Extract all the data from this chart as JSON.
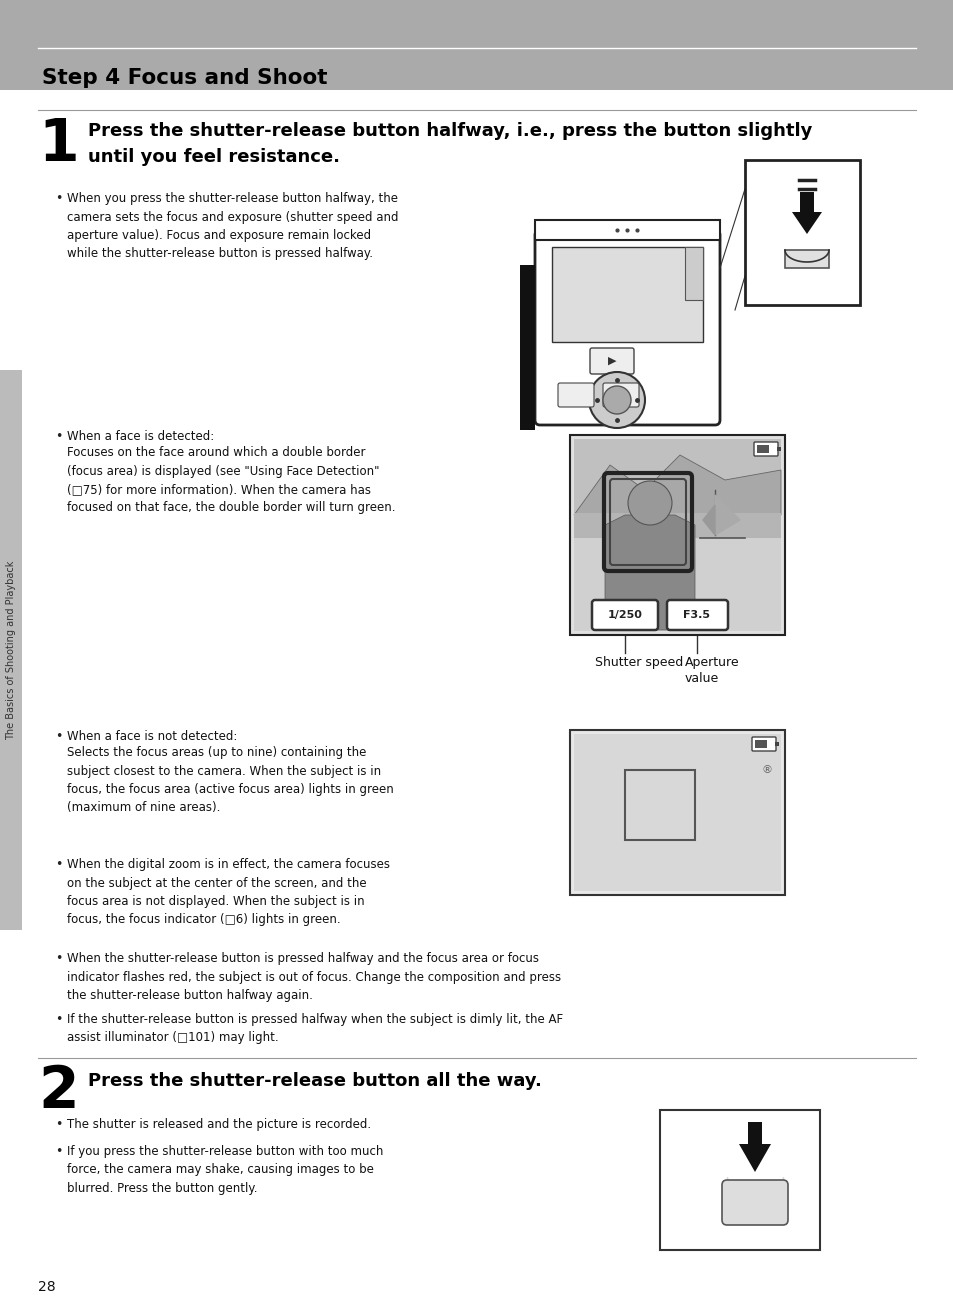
{
  "bg_color": "#ffffff",
  "header_bg": "#aaaaaa",
  "header_text": "Step 4 Focus and Shoot",
  "page_number": "28",
  "sidebar_text": "The Basics of Shooting and Playback",
  "sidebar_bg": "#bbbbbb",
  "step1_number": "1",
  "step1_title_line1": "Press the shutter-release button halfway, i.e., press the button slightly",
  "step1_title_line2": "until you feel resistance.",
  "step2_number": "2",
  "step2_title": "Press the shutter-release button all the way.",
  "bullet1_text": "When you press the shutter-release button halfway, the\ncamera sets the focus and exposure (shutter speed and\naperture value). Focus and exposure remain locked\nwhile the shutter-release button is pressed halfway.",
  "bullet2_line1": "When a face is detected:",
  "bullet2_rest": "Focuses on the face around which a double border\n(focus area) is displayed (see \"Using Face Detection\"\n(□75) for more information). When the camera has\nfocused on that face, the double border will turn green.",
  "bullet3_line1": "When a face is not detected:",
  "bullet3_rest": "Selects the focus areas (up to nine) containing the\nsubject closest to the camera. When the subject is in\nfocus, the focus area (active focus area) lights in green\n(maximum of nine areas).",
  "bullet4_text": "When the digital zoom is in effect, the camera focuses\non the subject at the center of the screen, and the\nfocus area is not displayed. When the subject is in\nfocus, the focus indicator (□6) lights in green.",
  "bullet5_text": "When the shutter-release button is pressed halfway and the focus area or focus\nindicator flashes red, the subject is out of focus. Change the composition and press\nthe shutter-release button halfway again.",
  "bullet6_text": "If the shutter-release button is pressed halfway when the subject is dimly lit, the AF\nassist illuminator (□101) may light.",
  "step2_bullet1": "The shutter is released and the picture is recorded.",
  "step2_bullet2": "If you press the shutter-release button with too much\nforce, the camera may shake, causing images to be\nblurred. Press the button gently.",
  "shutter_speed_label": "Shutter speed",
  "aperture_label": "Aperture\nvalue"
}
